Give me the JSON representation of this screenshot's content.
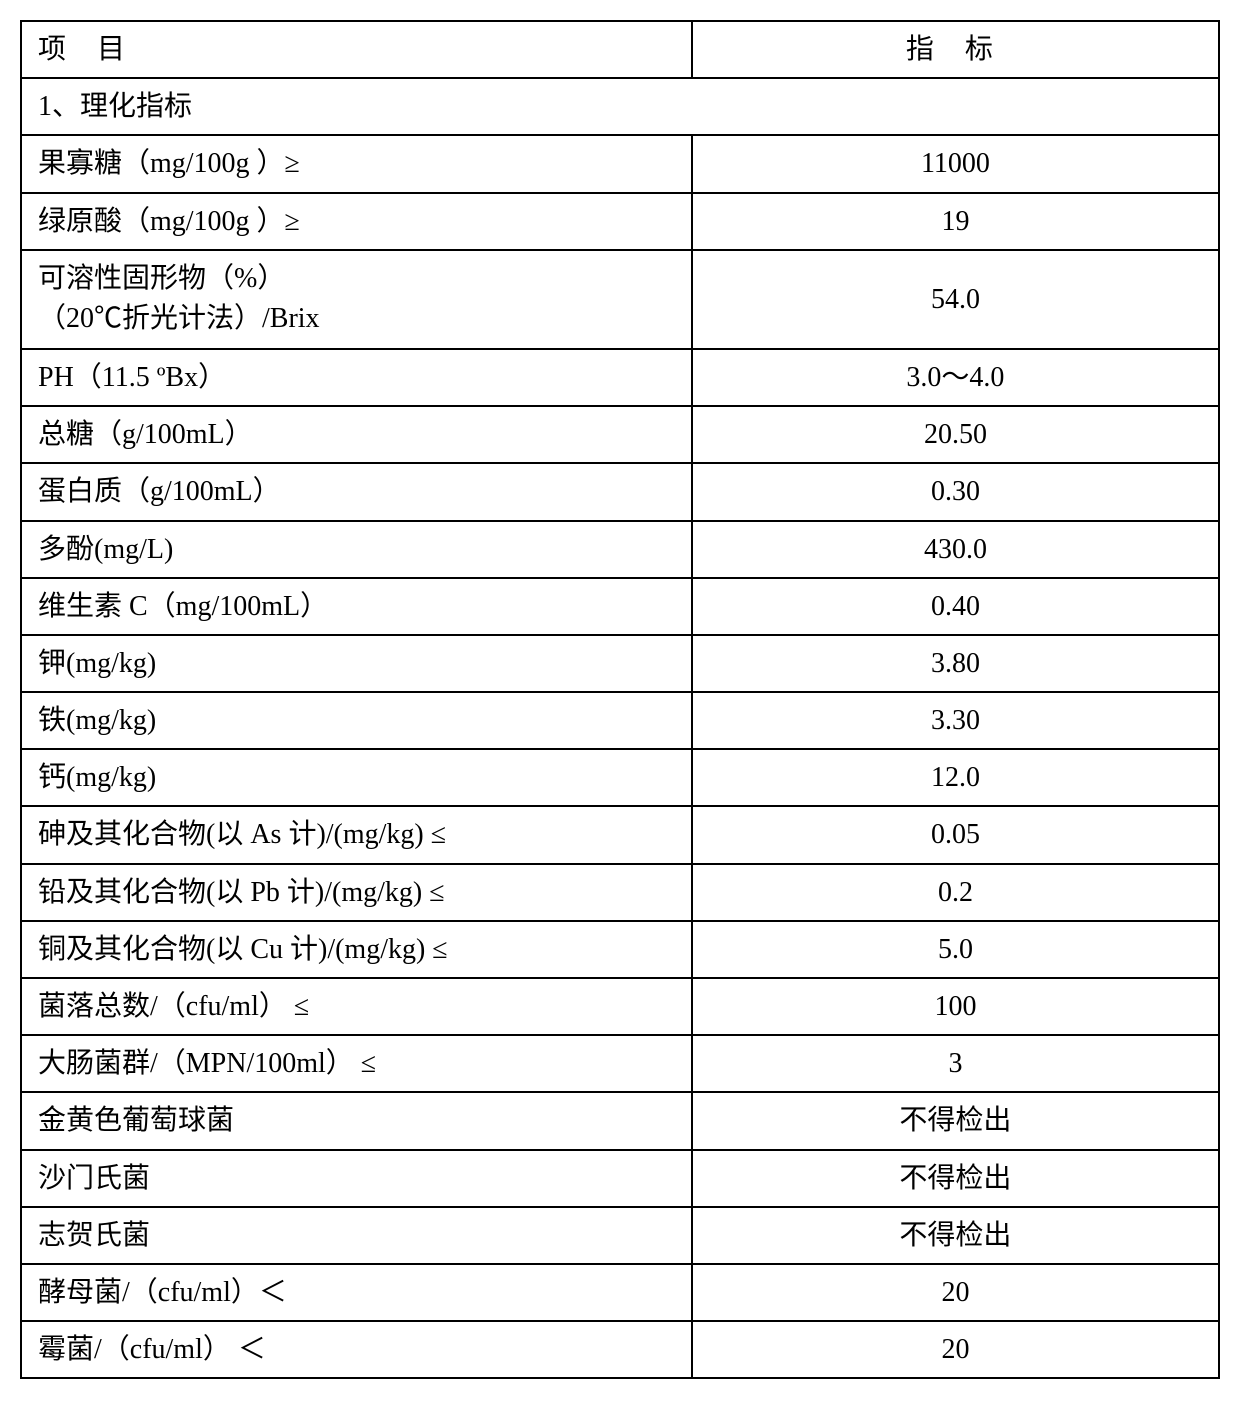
{
  "table": {
    "header": {
      "col_left": "项 目",
      "col_right": "指 标"
    },
    "section_header": "1、理化指标",
    "rows": [
      {
        "label": "果寡糖（mg/100g ）≥",
        "value": "11000"
      },
      {
        "label": "绿原酸（mg/100g ）≥",
        "value": "19"
      },
      {
        "label": "可溶性固形物（%）\n（20℃折光计法）/Brix",
        "value": "54.0"
      },
      {
        "label": "PH（11.5 ºBx）",
        "value": "3.0～4.0"
      },
      {
        "label": "总糖（g/100mL）",
        "value": "20.50"
      },
      {
        "label": "蛋白质（g/100mL）",
        "value": "0.30"
      },
      {
        "label": "多酚(mg/L)",
        "value": "430.0"
      },
      {
        "label": "维生素 C（mg/100mL）",
        "value": "0.40"
      },
      {
        "label": "钾(mg/kg)",
        "value": "3.80"
      },
      {
        "label": "铁(mg/kg)",
        "value": "3.30"
      },
      {
        "label": "钙(mg/kg)",
        "value": "12.0"
      },
      {
        "label": "砷及其化合物(以 As 计)/(mg/kg) ≤",
        "value": "0.05"
      },
      {
        "label": "铅及其化合物(以 Pb 计)/(mg/kg) ≤",
        "value": "0.2"
      },
      {
        "label": "铜及其化合物(以 Cu 计)/(mg/kg) ≤",
        "value": "5.0"
      },
      {
        "label": "菌落总数/（cfu/ml） ≤",
        "value": "100"
      },
      {
        "label": "大肠菌群/（MPN/100ml） ≤",
        "value": "3"
      },
      {
        "label": "金黄色葡萄球菌",
        "value": "不得检出"
      },
      {
        "label": "沙门氏菌",
        "value": "不得检出"
      },
      {
        "label": "志贺氏菌",
        "value": "不得检出"
      },
      {
        "label": "酵母菌/（cfu/ml）＜",
        "value": "20"
      },
      {
        "label": "霉菌/（cfu/ml） ＜",
        "value": "20"
      }
    ]
  },
  "style": {
    "border_color": "#000000",
    "background_color": "#ffffff",
    "font_size": 28,
    "text_color": "#000000",
    "col_left_width_pct": 56,
    "col_right_width_pct": 44
  }
}
